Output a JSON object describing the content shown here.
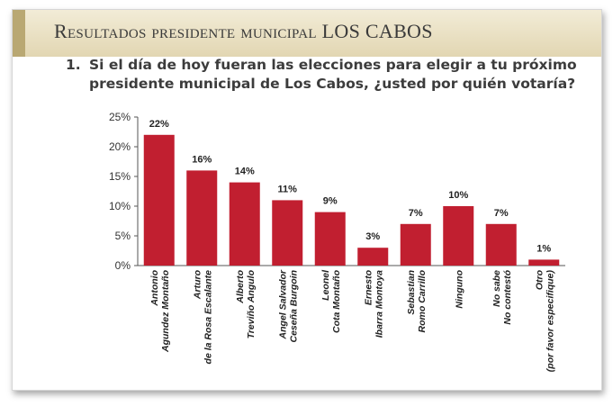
{
  "banner": {
    "title": "Resultados presidente municipal LOS CABOS"
  },
  "question": {
    "number": "1.",
    "line1": "Si el día de hoy fueran las elecciones para elegir a tu próximo",
    "line2": "presidente municipal de Los Cabos,  ¿usted por quién votaría?"
  },
  "colors": {
    "bar": "#c11f30",
    "banner": "#e6dcb9",
    "text": "#3c3c3c"
  },
  "chart_data": {
    "type": "bar",
    "title": "",
    "xlabel": "",
    "ylabel": "",
    "ylim": [
      0,
      25
    ],
    "yticks": [
      0,
      5,
      10,
      15,
      20,
      25
    ],
    "ytick_labels": [
      "0%",
      "5%",
      "10%",
      "15%",
      "20%",
      "25%"
    ],
    "grid": false,
    "legend": "none",
    "categories": [
      [
        "Antonio",
        "Agundez Montaño"
      ],
      [
        "Arturo",
        "de la Rosa Escalante"
      ],
      [
        "Alberto",
        "Treviño Angulo"
      ],
      [
        "Angel Salvador",
        "Ceseña Burgoin"
      ],
      [
        "Leonel",
        "Cota Montaño"
      ],
      [
        "Ernesto",
        "Ibarra Montoya"
      ],
      [
        "Sebastian",
        "Romo Carrillo"
      ],
      [
        "Ninguno"
      ],
      [
        "No sabe",
        "No contestó"
      ],
      [
        "Otro",
        "(por favor especifique)"
      ]
    ],
    "values": [
      22,
      16,
      14,
      11,
      9,
      3,
      7,
      10,
      7,
      1
    ],
    "value_labels": [
      "22%",
      "16%",
      "14%",
      "11%",
      "9%",
      "3%",
      "7%",
      "10%",
      "7%",
      "1%"
    ]
  }
}
